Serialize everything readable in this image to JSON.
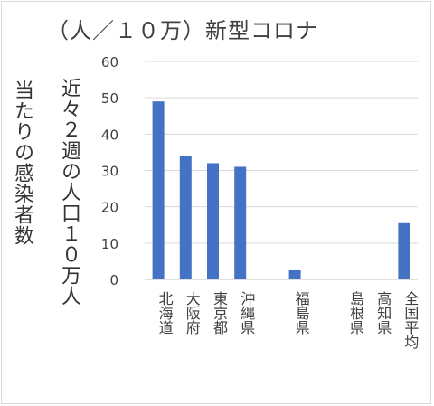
{
  "chart_data": {
    "type": "bar",
    "title": "（人／１０万）新型コロナ",
    "ylabel_lines": [
      "当たりの感染者数",
      "近々２週の人口１０万人"
    ],
    "categories": [
      "北海道",
      "大阪府",
      "東京都",
      "沖縄県",
      "",
      "福島県",
      "",
      "島根県",
      "高知県",
      "全国平均"
    ],
    "values": [
      49,
      34,
      32,
      31,
      0,
      2.5,
      0,
      0,
      0,
      15.5
    ],
    "ylim": [
      0,
      60
    ],
    "yticks": [
      "0",
      "10",
      "20",
      "30",
      "40",
      "50",
      "60"
    ],
    "grid": true,
    "colors": {
      "bar": "#4472c4",
      "grid": "#d9d9d9",
      "text": "#404040"
    }
  }
}
